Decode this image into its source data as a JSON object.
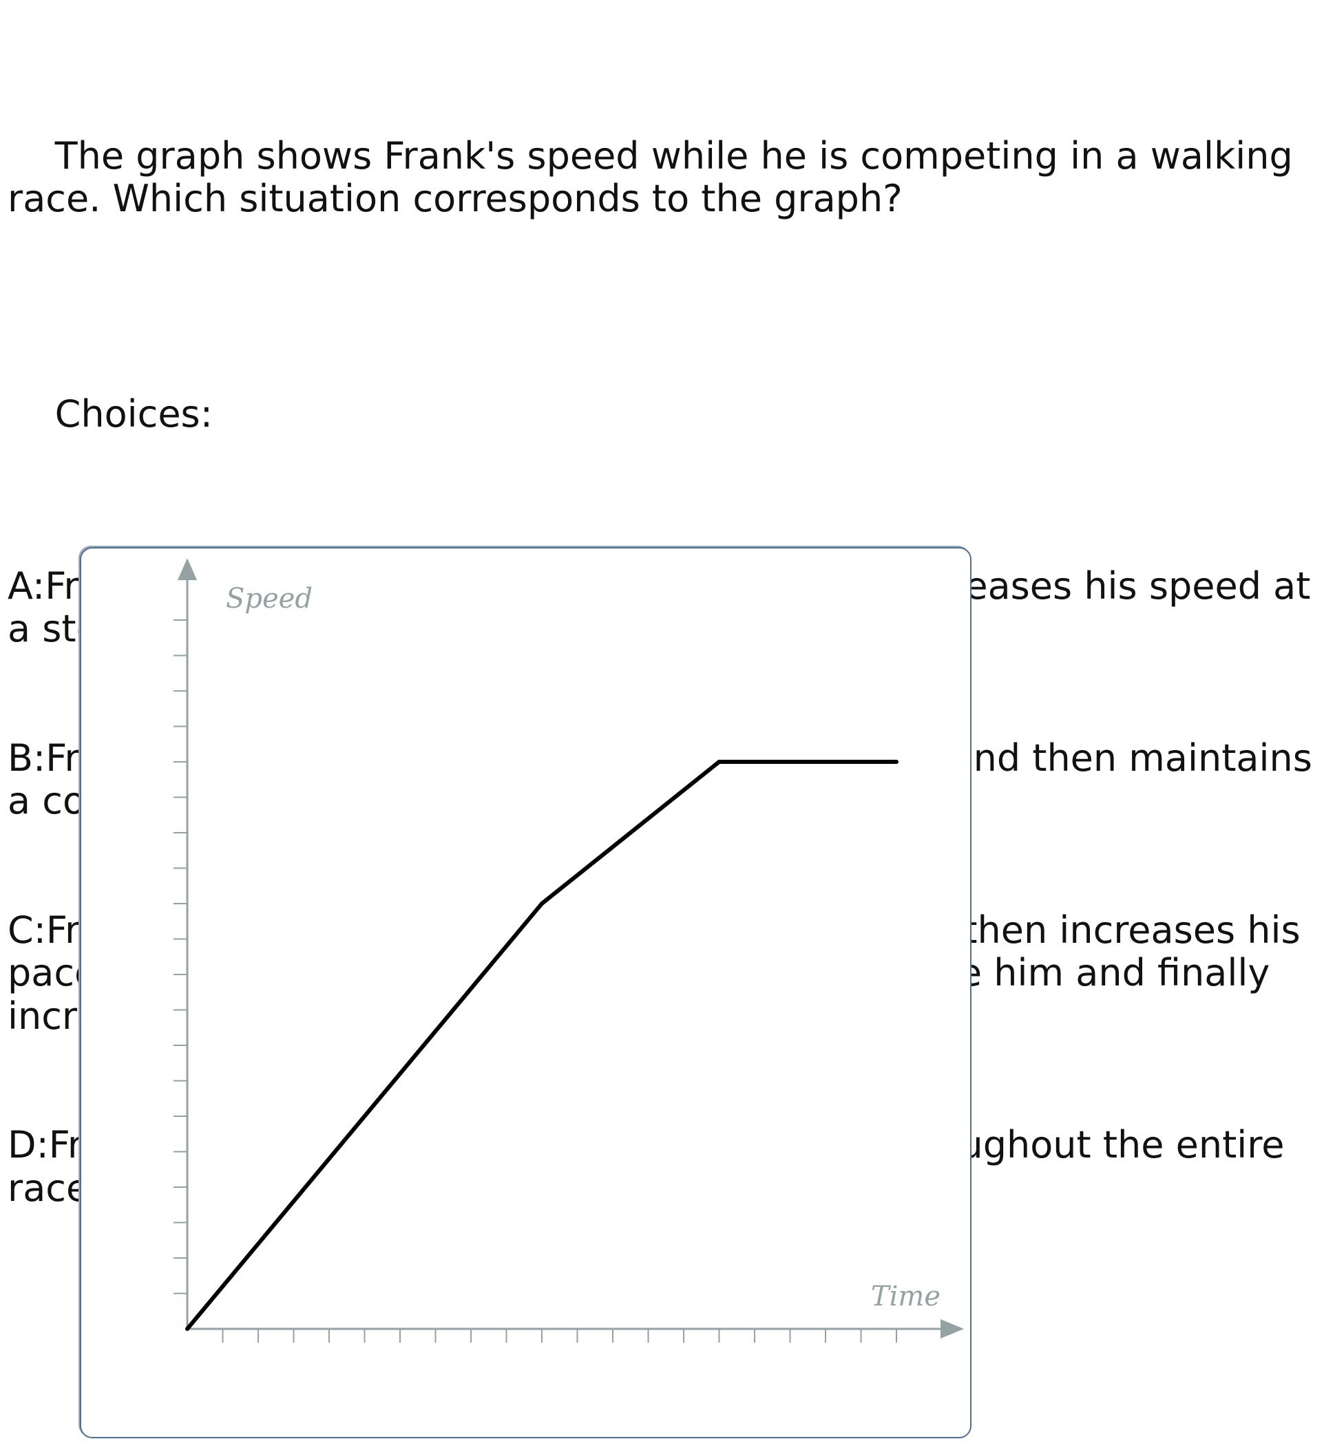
{
  "question": {
    "prompt": "The graph shows Frank's speed while he is competing in a walking race. Which situation corresponds to the graph?",
    "choices_heading": "Choices:",
    "choices": [
      {
        "letter": "A",
        "text": "Frank starts off at a constant speed and then increases his speed at a steady rate"
      },
      {
        "letter": "B",
        "text": "Frank starts off by increasing his pace gradually and then maintains a constant speed"
      },
      {
        "letter": "C",
        "text": "Frank starts off by increasing his pace gradually, then increases his pace at a faster rate as he sees his arch rival beside him and finally increases his pace at a more gradual pace"
      },
      {
        "letter": "D",
        "text": "Frank increases his speed at a constant rate throughout the entire race"
      }
    ]
  },
  "chart_data": {
    "type": "line",
    "title": "",
    "xlabel": "Time",
    "ylabel": "Speed",
    "x_ticks": 20,
    "y_ticks": 20,
    "xlim": [
      0,
      22
    ],
    "ylim": [
      0,
      22
    ],
    "series": [
      {
        "x": [
          0,
          10,
          15,
          20
        ],
        "y": [
          0,
          12,
          16,
          16
        ]
      }
    ],
    "grid": false,
    "axis_color": "#95a2a4",
    "line_color": "#000000",
    "frame_color": "#4f6f94"
  }
}
